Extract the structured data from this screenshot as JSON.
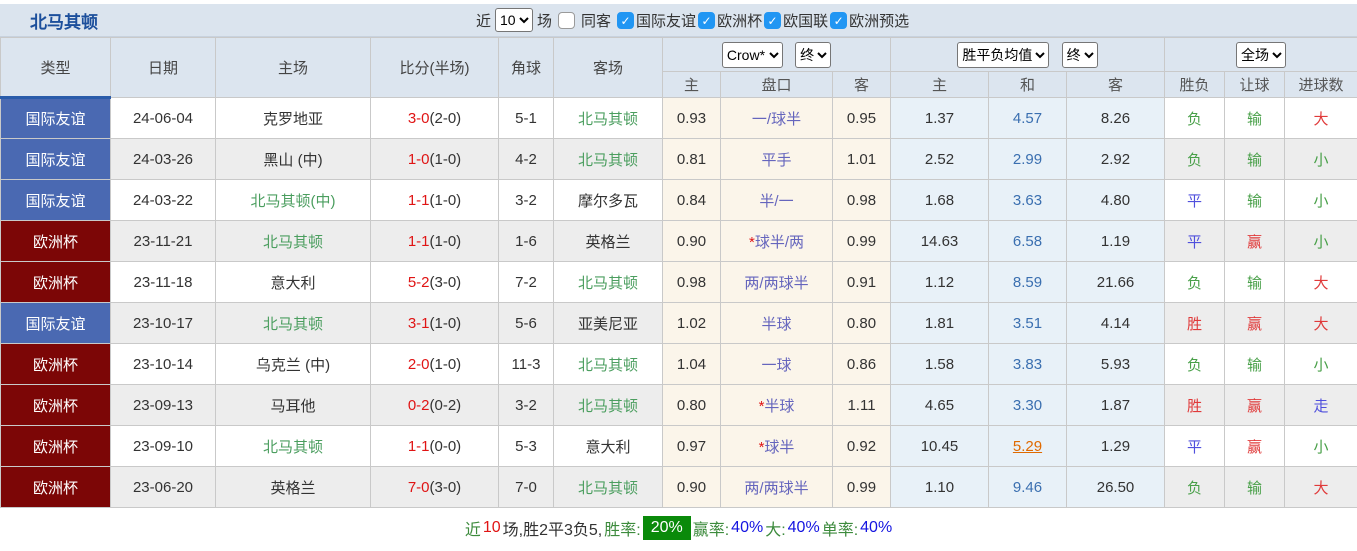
{
  "title": "北马其顿",
  "toolbar": {
    "recent_label": "近",
    "recent_value": "10",
    "matches_label": "场",
    "same_away_label": "同客",
    "same_away_checked": false,
    "leagues": [
      {
        "label": "国际友谊",
        "checked": true
      },
      {
        "label": "欧洲杯",
        "checked": true
      },
      {
        "label": "欧国联",
        "checked": true
      },
      {
        "label": "欧洲预选",
        "checked": true
      }
    ]
  },
  "header": {
    "cols": [
      "类型",
      "日期",
      "主场",
      "比分(半场)",
      "角球",
      "客场"
    ],
    "handicap_group": {
      "select_company": "Crow*",
      "select_time": "终",
      "subcols": [
        "主",
        "盘口",
        "客"
      ]
    },
    "europe_group": {
      "select_company": "胜平负均值",
      "select_time": "终",
      "subcols": [
        "主",
        "和",
        "客"
      ]
    },
    "result_group": {
      "select_scope": "全场",
      "subcols": [
        "胜负",
        "让球",
        "进球数"
      ]
    }
  },
  "rows": [
    {
      "type": "国际友谊",
      "type_color": "blue",
      "date": "24-06-04",
      "home": "克罗地亚",
      "home_green": false,
      "score": "3-0",
      "half": "(2-0)",
      "corner": "5-1",
      "away": "北马其顿",
      "away_green": true,
      "home_odds": "0.93",
      "handicap": "一/球半",
      "handicap_star": false,
      "away_odds": "0.95",
      "win": "1.37",
      "draw": "4.57",
      "lose": "8.26",
      "draw_link": false,
      "result": "负",
      "handicap_result": "输",
      "goals_result": "大"
    },
    {
      "type": "国际友谊",
      "type_color": "blue",
      "date": "24-03-26",
      "home": "黑山 (中)",
      "home_green": false,
      "score": "1-0",
      "half": "(1-0)",
      "corner": "4-2",
      "away": "北马其顿",
      "away_green": true,
      "home_odds": "0.81",
      "handicap": "平手",
      "handicap_star": false,
      "away_odds": "1.01",
      "win": "2.52",
      "draw": "2.99",
      "lose": "2.92",
      "draw_link": false,
      "result": "负",
      "handicap_result": "输",
      "goals_result": "小"
    },
    {
      "type": "国际友谊",
      "type_color": "blue",
      "date": "24-03-22",
      "home": "北马其顿(中)",
      "home_green": true,
      "score": "1-1",
      "half": "(1-0)",
      "corner": "3-2",
      "away": "摩尔多瓦",
      "away_green": false,
      "home_odds": "0.84",
      "handicap": "半/一",
      "handicap_star": false,
      "away_odds": "0.98",
      "win": "1.68",
      "draw": "3.63",
      "lose": "4.80",
      "draw_link": false,
      "result": "平",
      "handicap_result": "输",
      "goals_result": "小"
    },
    {
      "type": "欧洲杯",
      "type_color": "maroon",
      "date": "23-11-21",
      "home": "北马其顿",
      "home_green": true,
      "score": "1-1",
      "half": "(1-0)",
      "corner": "1-6",
      "away": "英格兰",
      "away_green": false,
      "home_odds": "0.90",
      "handicap": "球半/两",
      "handicap_star": true,
      "away_odds": "0.99",
      "win": "14.63",
      "draw": "6.58",
      "lose": "1.19",
      "draw_link": false,
      "result": "平",
      "handicap_result": "赢",
      "goals_result": "小"
    },
    {
      "type": "欧洲杯",
      "type_color": "maroon",
      "date": "23-11-18",
      "home": "意大利",
      "home_green": false,
      "score": "5-2",
      "half": "(3-0)",
      "corner": "7-2",
      "away": "北马其顿",
      "away_green": true,
      "home_odds": "0.98",
      "handicap": "两/两球半",
      "handicap_star": false,
      "away_odds": "0.91",
      "win": "1.12",
      "draw": "8.59",
      "lose": "21.66",
      "draw_link": false,
      "result": "负",
      "handicap_result": "输",
      "goals_result": "大"
    },
    {
      "type": "国际友谊",
      "type_color": "blue",
      "date": "23-10-17",
      "home": "北马其顿",
      "home_green": true,
      "score": "3-1",
      "half": "(1-0)",
      "corner": "5-6",
      "away": "亚美尼亚",
      "away_green": false,
      "home_odds": "1.02",
      "handicap": "半球",
      "handicap_star": false,
      "away_odds": "0.80",
      "win": "1.81",
      "draw": "3.51",
      "lose": "4.14",
      "draw_link": false,
      "result": "胜",
      "handicap_result": "赢",
      "goals_result": "大"
    },
    {
      "type": "欧洲杯",
      "type_color": "maroon",
      "date": "23-10-14",
      "home": "乌克兰 (中)",
      "home_green": false,
      "score": "2-0",
      "half": "(1-0)",
      "corner": "11-3",
      "away": "北马其顿",
      "away_green": true,
      "home_odds": "1.04",
      "handicap": "一球",
      "handicap_star": false,
      "away_odds": "0.86",
      "win": "1.58",
      "draw": "3.83",
      "lose": "5.93",
      "draw_link": false,
      "result": "负",
      "handicap_result": "输",
      "goals_result": "小"
    },
    {
      "type": "欧洲杯",
      "type_color": "maroon",
      "date": "23-09-13",
      "home": "马耳他",
      "home_green": false,
      "score": "0-2",
      "half": "(0-2)",
      "corner": "3-2",
      "away": "北马其顿",
      "away_green": true,
      "home_odds": "0.80",
      "handicap": "半球",
      "handicap_star": true,
      "away_odds": "1.11",
      "win": "4.65",
      "draw": "3.30",
      "lose": "1.87",
      "draw_link": false,
      "result": "胜",
      "handicap_result": "赢",
      "goals_result": "走"
    },
    {
      "type": "欧洲杯",
      "type_color": "maroon",
      "date": "23-09-10",
      "home": "北马其顿",
      "home_green": true,
      "score": "1-1",
      "half": "(0-0)",
      "corner": "5-3",
      "away": "意大利",
      "away_green": false,
      "home_odds": "0.97",
      "handicap": "球半",
      "handicap_star": true,
      "away_odds": "0.92",
      "win": "10.45",
      "draw": "5.29",
      "lose": "1.29",
      "draw_link": true,
      "result": "平",
      "handicap_result": "赢",
      "goals_result": "小"
    },
    {
      "type": "欧洲杯",
      "type_color": "maroon",
      "date": "23-06-20",
      "home": "英格兰",
      "home_green": false,
      "score": "7-0",
      "half": "(3-0)",
      "corner": "7-0",
      "away": "北马其顿",
      "away_green": true,
      "home_odds": "0.90",
      "handicap": "两/两球半",
      "handicap_star": false,
      "away_odds": "0.99",
      "win": "1.10",
      "draw": "9.46",
      "lose": "26.50",
      "draw_link": false,
      "result": "负",
      "handicap_result": "输",
      "goals_result": "大"
    }
  ],
  "footer": {
    "segments": [
      {
        "text": "近",
        "color": "green"
      },
      {
        "text": "10",
        "color": "red"
      },
      {
        "text": "场,胜2平3负5, ",
        "color": "dark"
      },
      {
        "text": "胜率:",
        "color": "green"
      },
      {
        "text": "20%",
        "color": "badge"
      },
      {
        "text": " 赢率:",
        "color": "green"
      },
      {
        "text": "40%",
        "color": "blue"
      },
      {
        "text": " 大:",
        "color": "green"
      },
      {
        "text": "40%",
        "color": "blue"
      },
      {
        "text": " 单率:",
        "color": "green"
      },
      {
        "text": "40%",
        "color": "blue"
      }
    ]
  },
  "colors": {
    "title_blue": "#1c4f9c",
    "type_blue": "#4a69b2",
    "type_maroon": "#7c0606",
    "score_red": "#e01414",
    "team_green": "#4b9e5f",
    "handicap_purple": "#6565bd",
    "draw_value_blue": "#3a6fb0",
    "win_red": "#e03a3a",
    "lose_green": "#49a049",
    "push_blue": "#5050dd",
    "link_orange": "#e06a00",
    "badge_green": "#0a8a0a",
    "header_bg": "#dce5ef",
    "handicap_col_bg": "#fbf5ea",
    "europe_col_bg": "#e8f1f8",
    "checkbox_blue": "#2196f3"
  }
}
